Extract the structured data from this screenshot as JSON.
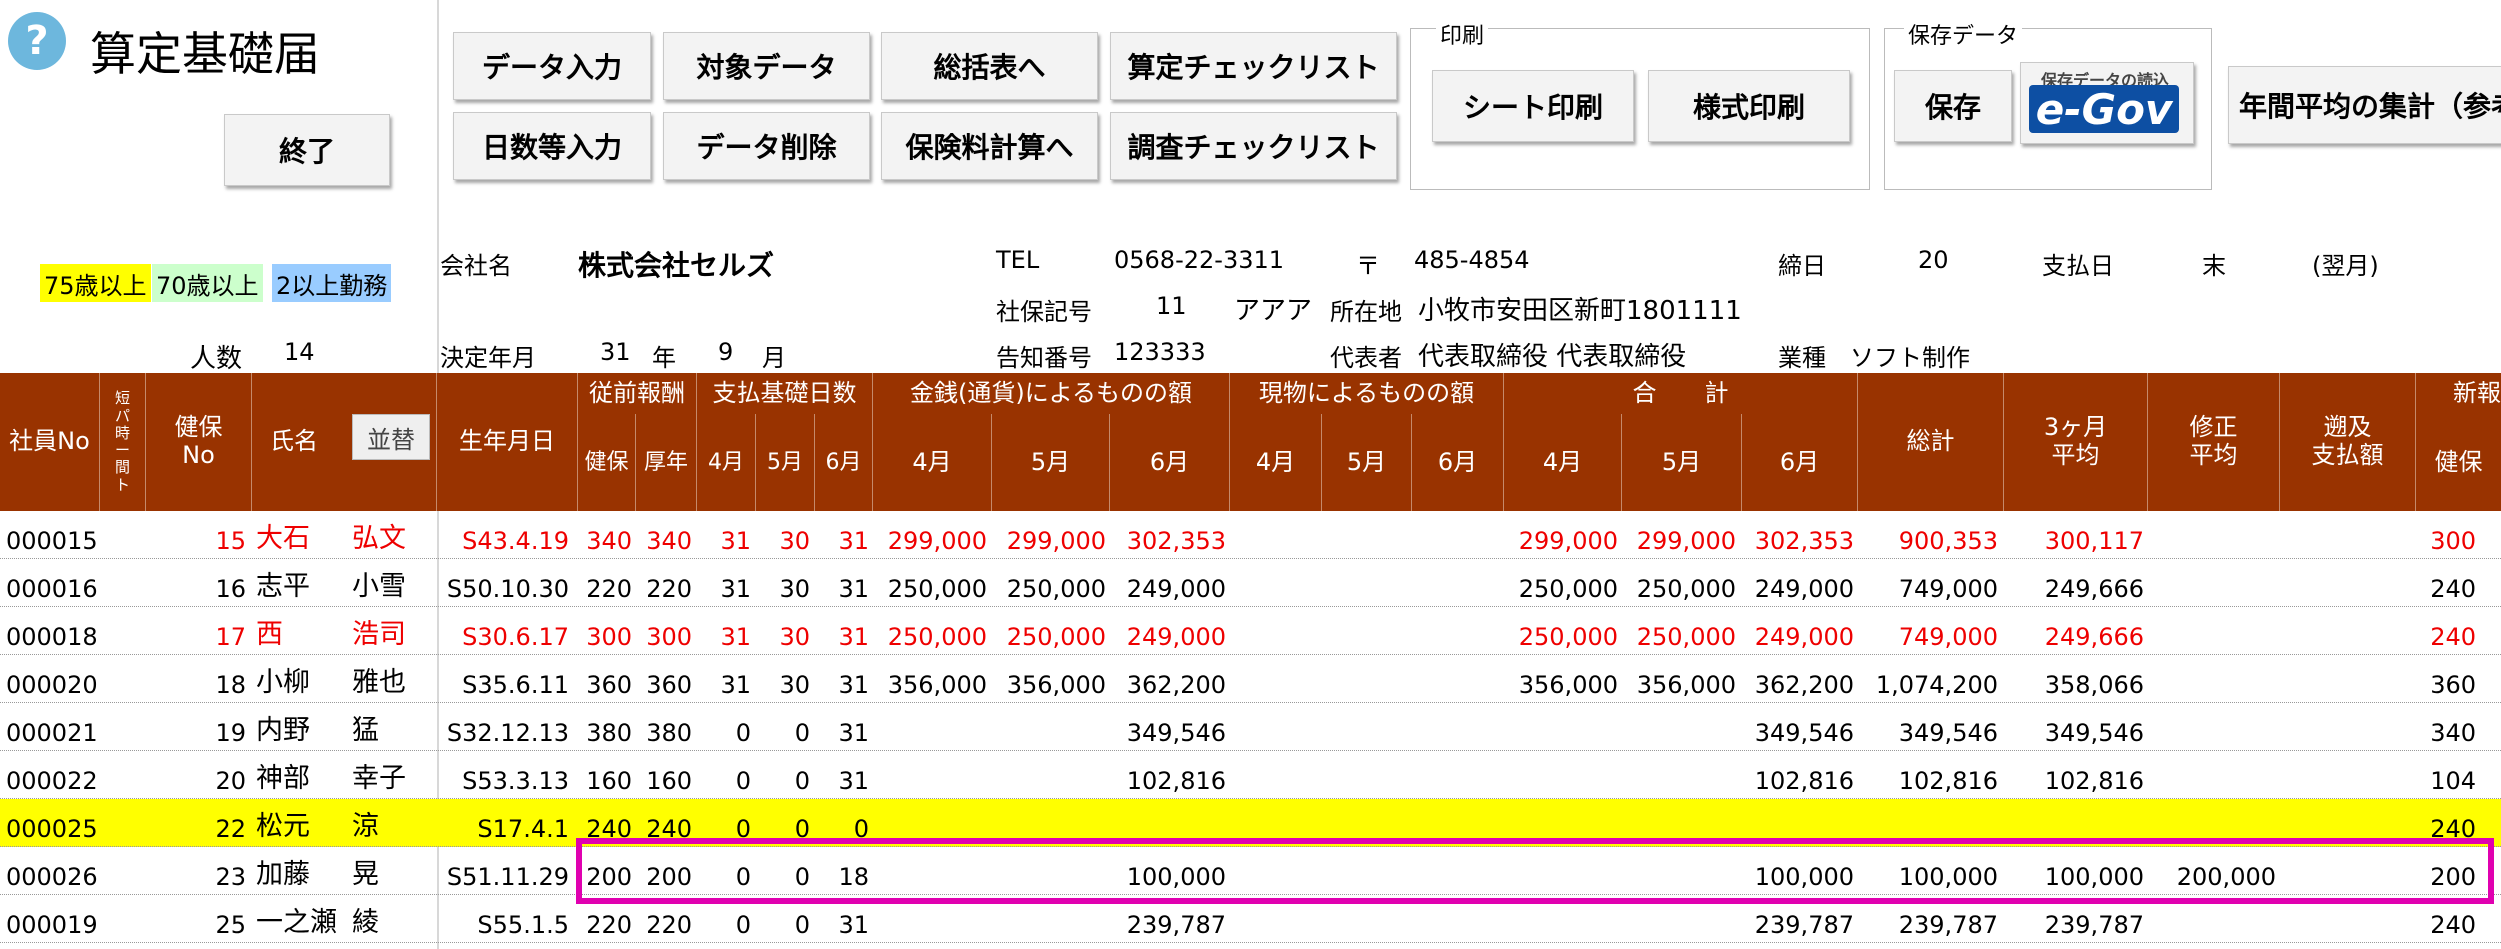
{
  "app": {
    "title": "算定基礎届",
    "help_glyph": "?"
  },
  "toolbar": {
    "exit": "終了",
    "data_input": "データ入力",
    "target_data": "対象データ",
    "to_summary": "総括表へ",
    "calc_checklist": "算定チェックリスト",
    "days_input": "日数等入力",
    "data_delete": "データ削除",
    "to_premium": "保険料計算へ",
    "survey_checklist": "調査チェックリスト",
    "print_group": "印刷",
    "sheet_print": "シート印刷",
    "form_print": "様式印刷",
    "save_group": "保存データ",
    "save": "保存",
    "egov_small": "保存データの読込",
    "egov_logo": "e-Gov",
    "annual_avg": "年間平均の集計（参考"
  },
  "legend": {
    "age75": "75歳以上",
    "age70": "70歳以上",
    "multi": "2以上勤務"
  },
  "info": {
    "company_label": "会社名",
    "company": "株式会社セルズ",
    "tel_label": "TEL",
    "tel": "0568-22-3311",
    "postal_label": "〒",
    "postal": "485-4854",
    "closing_label": "締日",
    "closing": "20",
    "payday_label": "支払日",
    "payday": "末",
    "payday_note": "(翌月)",
    "insurance_code_label": "社保記号",
    "insurance_code": "11",
    "insurance_code2": "アアア",
    "address_label": "所在地",
    "address": "小牧市安田区新町1801111",
    "count_label": "人数",
    "count": "14",
    "decision_label": "決定年月",
    "decision_year": "31",
    "year_unit": "年",
    "decision_month": "9",
    "month_unit": "月",
    "notice_label": "告知番号",
    "notice": "123333",
    "rep_label": "代表者",
    "rep": "代表取締役 代表取締役",
    "biz_label": "業種",
    "biz": "ソフト制作"
  },
  "table": {
    "headers": {
      "emp_no": "社員No",
      "short": "短\nパ\n時\nー\n間\nト",
      "kenpo_no": "健保\nNo",
      "name": "氏名",
      "sort": "並替",
      "birth": "生年月日",
      "prev": "従前報酬",
      "prev_kenpo": "健保",
      "prev_kosei": "厚年",
      "days": "支払基礎日数",
      "d4": "4月",
      "d5": "5月",
      "d6": "6月",
      "money": "金銭(通貨)によるものの額",
      "m4": "4月",
      "m5": "5月",
      "m6": "6月",
      "goods": "現物によるものの額",
      "g4": "4月",
      "g5": "5月",
      "g6": "6月",
      "total": "合　　計",
      "t4": "4月",
      "t5": "5月",
      "t6": "6月",
      "sum": "総計",
      "avg3": "3ヶ月\n平均",
      "fix_avg": "修正\n平均",
      "retro": "遡及\n支払額",
      "new": "新報",
      "new_kenpo": "健保"
    },
    "rows": [
      {
        "no": "000015",
        "kn": "15",
        "last": "大石",
        "first": "弘文",
        "birth": "S43.4.19",
        "pk": "340",
        "py": "340",
        "d4": "31",
        "d5": "30",
        "d6": "31",
        "m4": "299,000",
        "m5": "299,000",
        "m6": "302,353",
        "t4": "299,000",
        "t5": "299,000",
        "t6": "302,353",
        "sum": "900,353",
        "avg": "300,117",
        "fix": "",
        "retro": "",
        "newk": "300",
        "red": true,
        "yellow": false
      },
      {
        "no": "000016",
        "kn": "16",
        "last": "志平",
        "first": "小雪",
        "birth": "S50.10.30",
        "pk": "220",
        "py": "220",
        "d4": "31",
        "d5": "30",
        "d6": "31",
        "m4": "250,000",
        "m5": "250,000",
        "m6": "249,000",
        "t4": "250,000",
        "t5": "250,000",
        "t6": "249,000",
        "sum": "749,000",
        "avg": "249,666",
        "fix": "",
        "retro": "",
        "newk": "240",
        "red": false,
        "yellow": false
      },
      {
        "no": "000018",
        "kn": "17",
        "last": "西",
        "first": "浩司",
        "birth": "S30.6.17",
        "pk": "300",
        "py": "300",
        "d4": "31",
        "d5": "30",
        "d6": "31",
        "m4": "250,000",
        "m5": "250,000",
        "m6": "249,000",
        "t4": "250,000",
        "t5": "250,000",
        "t6": "249,000",
        "sum": "749,000",
        "avg": "249,666",
        "fix": "",
        "retro": "",
        "newk": "240",
        "red": true,
        "yellow": false
      },
      {
        "no": "000020",
        "kn": "18",
        "last": "小柳",
        "first": "雅也",
        "birth": "S35.6.11",
        "pk": "360",
        "py": "360",
        "d4": "31",
        "d5": "30",
        "d6": "31",
        "m4": "356,000",
        "m5": "356,000",
        "m6": "362,200",
        "t4": "356,000",
        "t5": "356,000",
        "t6": "362,200",
        "sum": "1,074,200",
        "avg": "358,066",
        "fix": "",
        "retro": "",
        "newk": "360",
        "red": false,
        "yellow": false
      },
      {
        "no": "000021",
        "kn": "19",
        "last": "内野",
        "first": "猛",
        "birth": "S32.12.13",
        "pk": "380",
        "py": "380",
        "d4": "0",
        "d5": "0",
        "d6": "31",
        "m4": "",
        "m5": "",
        "m6": "349,546",
        "t4": "",
        "t5": "",
        "t6": "349,546",
        "sum": "349,546",
        "avg": "349,546",
        "fix": "",
        "retro": "",
        "newk": "340",
        "red": false,
        "yellow": false
      },
      {
        "no": "000022",
        "kn": "20",
        "last": "神部",
        "first": "幸子",
        "birth": "S53.3.13",
        "pk": "160",
        "py": "160",
        "d4": "0",
        "d5": "0",
        "d6": "31",
        "m4": "",
        "m5": "",
        "m6": "102,816",
        "t4": "",
        "t5": "",
        "t6": "102,816",
        "sum": "102,816",
        "avg": "102,816",
        "fix": "",
        "retro": "",
        "newk": "104",
        "red": false,
        "yellow": false
      },
      {
        "no": "000025",
        "kn": "22",
        "last": "松元",
        "first": "涼",
        "birth": "S17.4.1",
        "pk": "240",
        "py": "240",
        "d4": "0",
        "d5": "0",
        "d6": "0",
        "m4": "",
        "m5": "",
        "m6": "",
        "t4": "",
        "t5": "",
        "t6": "",
        "sum": "",
        "avg": "",
        "fix": "",
        "retro": "",
        "newk": "240",
        "red": false,
        "yellow": true
      },
      {
        "no": "000026",
        "kn": "23",
        "last": "加藤",
        "first": "晃",
        "birth": "S51.11.29",
        "pk": "200",
        "py": "200",
        "d4": "0",
        "d5": "0",
        "d6": "18",
        "m4": "",
        "m5": "",
        "m6": "100,000",
        "t4": "",
        "t5": "",
        "t6": "100,000",
        "sum": "100,000",
        "avg": "100,000",
        "fix": "200,000",
        "retro": "",
        "newk": "200",
        "red": false,
        "yellow": false
      },
      {
        "no": "000019",
        "kn": "25",
        "last": "一之瀬",
        "first": "綾",
        "birth": "S55.1.5",
        "pk": "220",
        "py": "220",
        "d4": "0",
        "d5": "0",
        "d6": "31",
        "m4": "",
        "m5": "",
        "m6": "239,787",
        "t4": "",
        "t5": "",
        "t6": "239,787",
        "sum": "239,787",
        "avg": "239,787",
        "fix": "",
        "retro": "",
        "newk": "240",
        "red": false,
        "yellow": false
      }
    ]
  },
  "colors": {
    "header_bg": "#993300",
    "highlight": "#e000b0",
    "legend75": "#ffff00",
    "legend70": "#ccffcc",
    "legend_multi": "#99ccff"
  }
}
